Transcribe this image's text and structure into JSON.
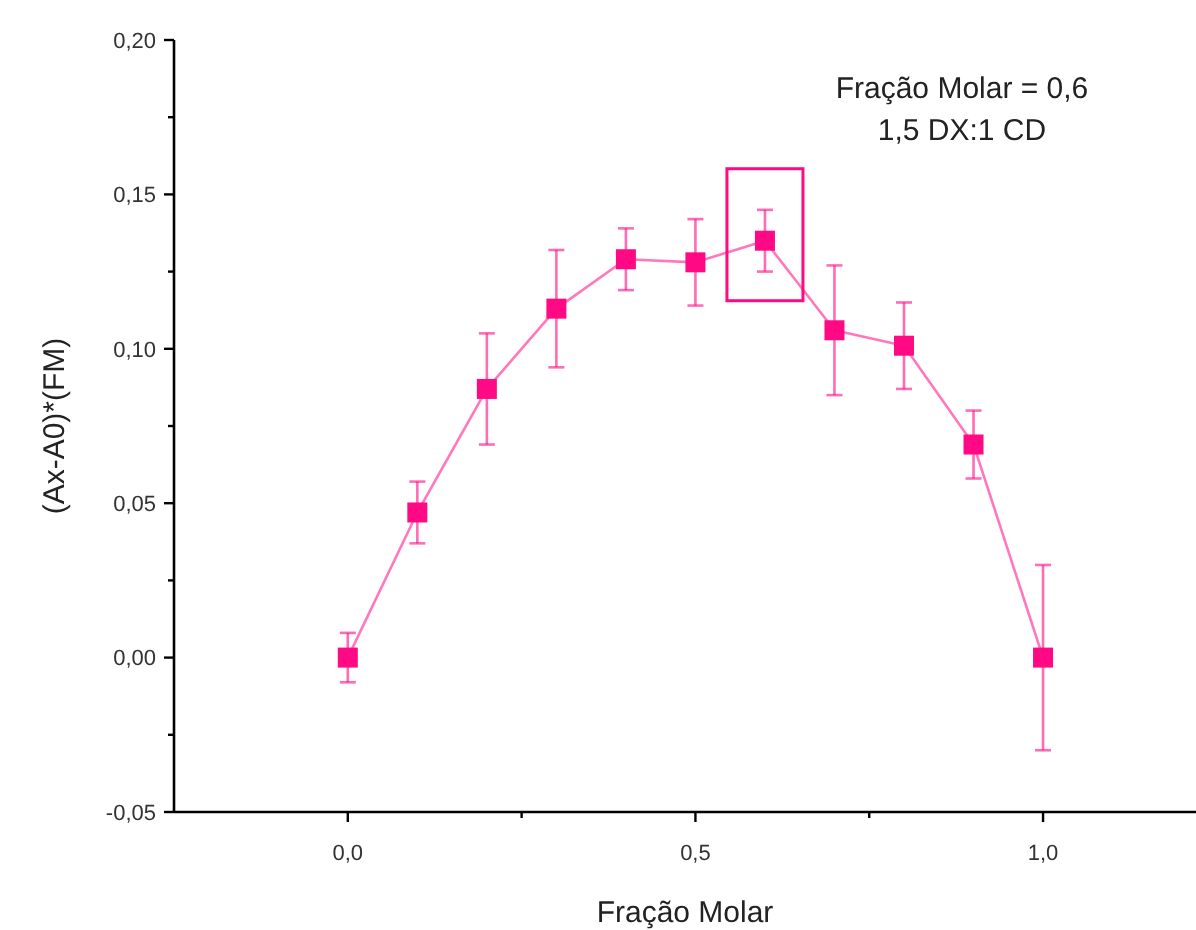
{
  "chart_data": {
    "type": "line",
    "xlabel": "Fração Molar",
    "ylabel": "(Ax-A0)*(FM)",
    "x": [
      0,
      0.1,
      0.2,
      0.3,
      0.4,
      0.5,
      0.6,
      0.7,
      0.8,
      0.9,
      1.0
    ],
    "series": [
      {
        "color": "#ff0a84",
        "values": [
          0.0,
          0.047,
          0.087,
          0.113,
          0.129,
          0.128,
          0.135,
          0.106,
          0.101,
          0.069,
          0.0
        ],
        "errors": [
          0.008,
          0.01,
          0.018,
          0.019,
          0.01,
          0.014,
          0.01,
          0.021,
          0.014,
          0.011,
          0.03
        ]
      }
    ],
    "marker": "square",
    "line_style": "solid",
    "xlim": [
      -0.25,
      1.22
    ],
    "xticks": [
      {
        "value": 0,
        "label": "0,0"
      },
      {
        "value": 0.25,
        "label": null
      },
      {
        "value": 0.5,
        "label": "0,5"
      },
      {
        "value": 0.75,
        "label": null
      },
      {
        "value": 1.0,
        "label": "1,0"
      }
    ],
    "ylim": [
      -0.05,
      0.2
    ],
    "yticks": [
      {
        "value": -0.05,
        "label": "-0,05"
      },
      {
        "value": -0.025,
        "label": null
      },
      {
        "value": 0,
        "label": "0,00"
      },
      {
        "value": 0.025,
        "label": null
      },
      {
        "value": 0.05,
        "label": "0,05"
      },
      {
        "value": 0.075,
        "label": null
      },
      {
        "value": 0.1,
        "label": "0,10"
      },
      {
        "value": 0.125,
        "label": null
      },
      {
        "value": 0.15,
        "label": "0,15"
      },
      {
        "value": 0.175,
        "label": null
      },
      {
        "value": 0.2,
        "label": "0,20"
      }
    ],
    "annotations": [
      "Fração Molar = 0,6",
      "1,5 DX:1 CD"
    ],
    "grid": false
  }
}
